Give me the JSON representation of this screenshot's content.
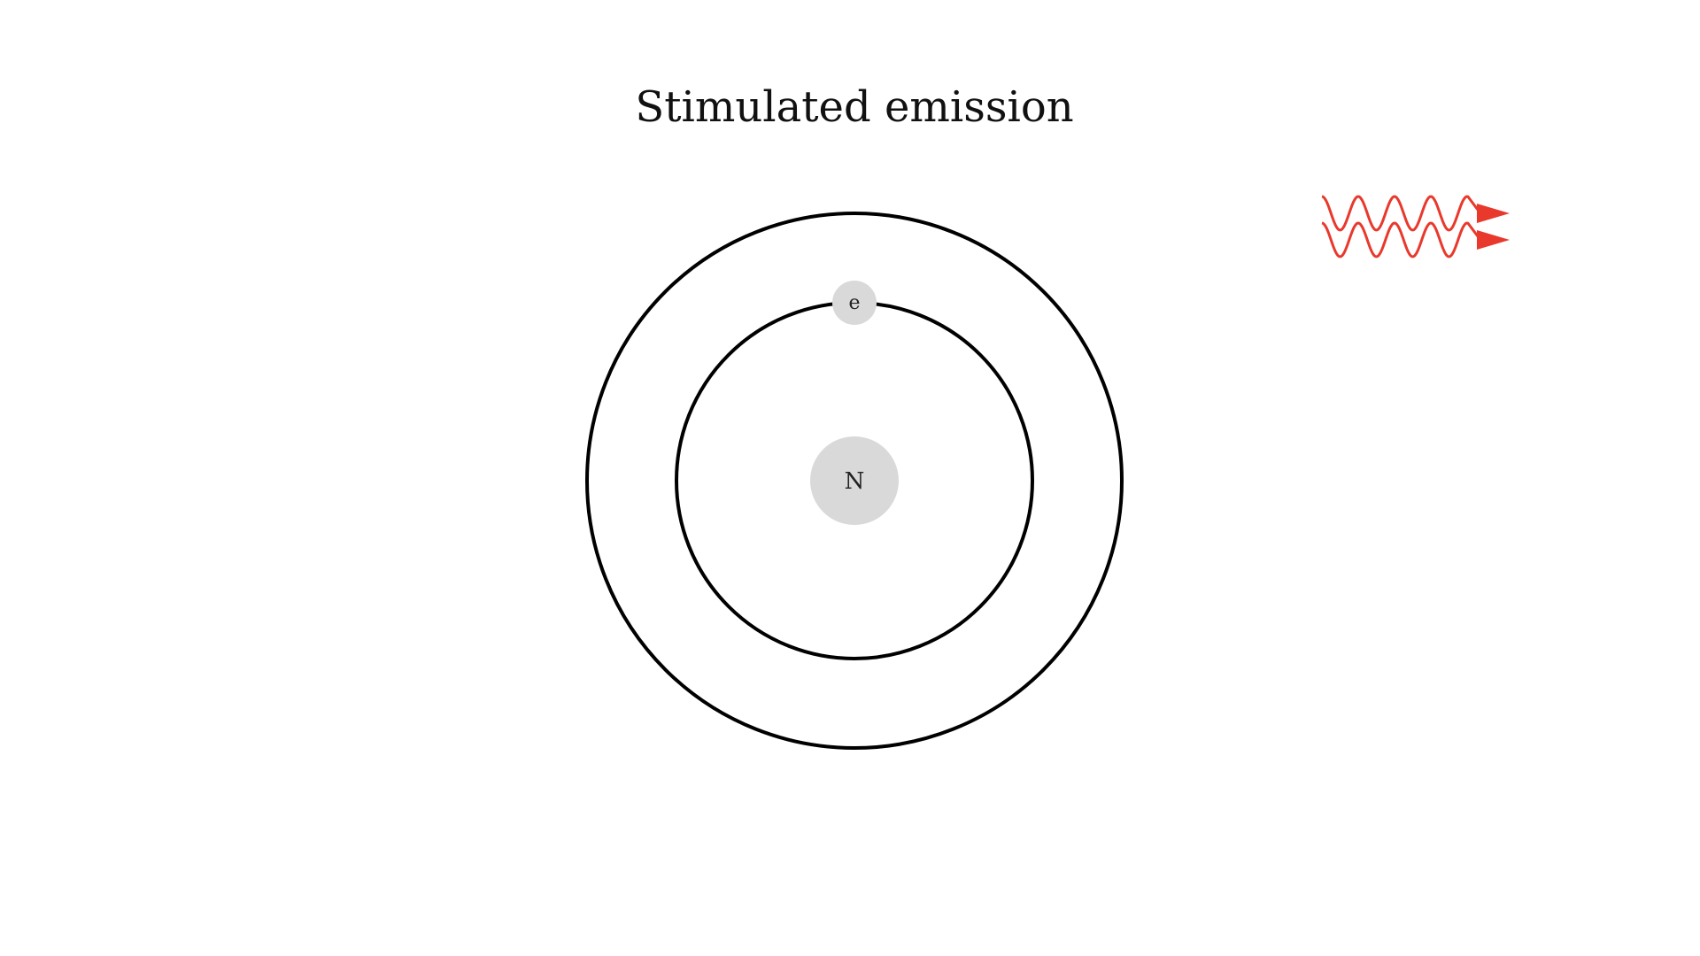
{
  "diagram": {
    "title": "Stimulated emission",
    "nucleus": {
      "label": "N",
      "fill": "#d9d9d9"
    },
    "electron": {
      "label": "e",
      "fill": "#d9d9d9"
    },
    "orbit_color": "#000000",
    "photons": {
      "count": 2,
      "color": "#e8392c"
    }
  }
}
